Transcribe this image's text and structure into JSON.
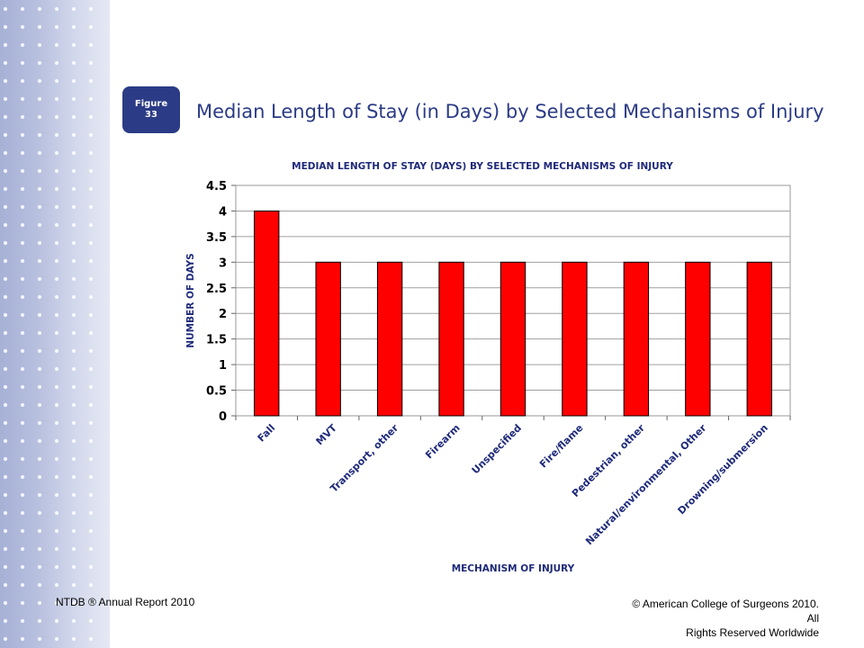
{
  "figure_badge": {
    "label": "Figure",
    "number": "33"
  },
  "slide_title": "Median Length of Stay (in Days) by Selected Mechanisms of Injury",
  "footer": {
    "left": "NTDB ® Annual Report 2010",
    "right_line1": "© American College of Surgeons 2010.  All",
    "right_line2": "Rights Reserved Worldwide"
  },
  "colors": {
    "bar_fill": "#ff0000",
    "accent_navy": "#2b3b86"
  },
  "chart_data": {
    "type": "bar",
    "title": "MEDIAN LENGTH OF STAY (DAYS) BY SELECTED MECHANISMS OF INJURY",
    "xlabel": "MECHANISM OF INJURY",
    "ylabel": "NUMBER OF DAYS",
    "categories": [
      "Fall",
      "MVT",
      "Transport, other",
      "Firearm",
      "Unspecified",
      "Fire/flame",
      "Pedestrian, other",
      "Natural/environmental, Other",
      "Drowning/submersion"
    ],
    "values": [
      4,
      3,
      3,
      3,
      3,
      3,
      3,
      3,
      3
    ],
    "ylim": [
      0,
      4.5
    ],
    "yticks": [
      "0",
      "0.5",
      "1",
      "1.5",
      "2",
      "2.5",
      "3",
      "3.5",
      "4",
      "4.5"
    ],
    "grid": true,
    "legend": "none"
  }
}
